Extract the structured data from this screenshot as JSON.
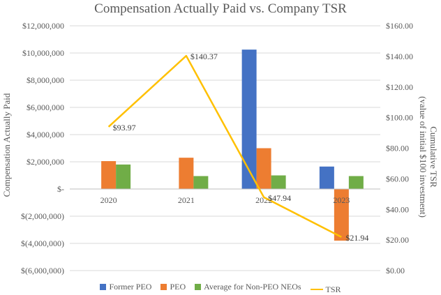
{
  "chart_data": {
    "type": "bar+line",
    "title": "Compensation Actually Paid vs. Company TSR",
    "categories": [
      "2020",
      "2021",
      "2022",
      "2023"
    ],
    "y_left": {
      "label": "Compensation Actually Paid",
      "min": -6000000,
      "max": 12000000,
      "step": 2000000,
      "tick_labels": [
        "$12,000,000",
        "$10,000,000",
        "$8,000,000",
        "$6,000,000",
        "$4,000,000",
        "$2,000,000",
        "$-",
        "$(2,000,000)",
        "$(4,000,000)",
        "$(6,000,000)"
      ]
    },
    "y_right": {
      "label_line1": "Cumulative TSR",
      "label_line2": "(value of initial $100 investment)",
      "min": 0,
      "max": 160,
      "step": 20,
      "tick_labels": [
        "$160.00",
        "$140.00",
        "$120.00",
        "$100.00",
        "$80.00",
        "$60.00",
        "$40.00",
        "$20.00",
        "$0.00"
      ]
    },
    "series": [
      {
        "name": "Former PEO",
        "type": "bar",
        "color": "#4472C4",
        "values": [
          null,
          null,
          10250000,
          1650000
        ]
      },
      {
        "name": "PEO",
        "type": "bar",
        "color": "#ED7D31",
        "values": [
          2050000,
          2300000,
          3000000,
          -3800000
        ]
      },
      {
        "name": "Average for Non-PEO NEOs",
        "type": "bar",
        "color": "#70AD47",
        "values": [
          1800000,
          950000,
          1000000,
          950000
        ]
      },
      {
        "name": "TSR",
        "type": "line",
        "axis": "right",
        "color": "#FFC000",
        "values": [
          93.97,
          140.37,
          47.94,
          21.94
        ],
        "labels": [
          "$93.97",
          "$140.37",
          "$47.94",
          "$21.94"
        ]
      }
    ]
  }
}
